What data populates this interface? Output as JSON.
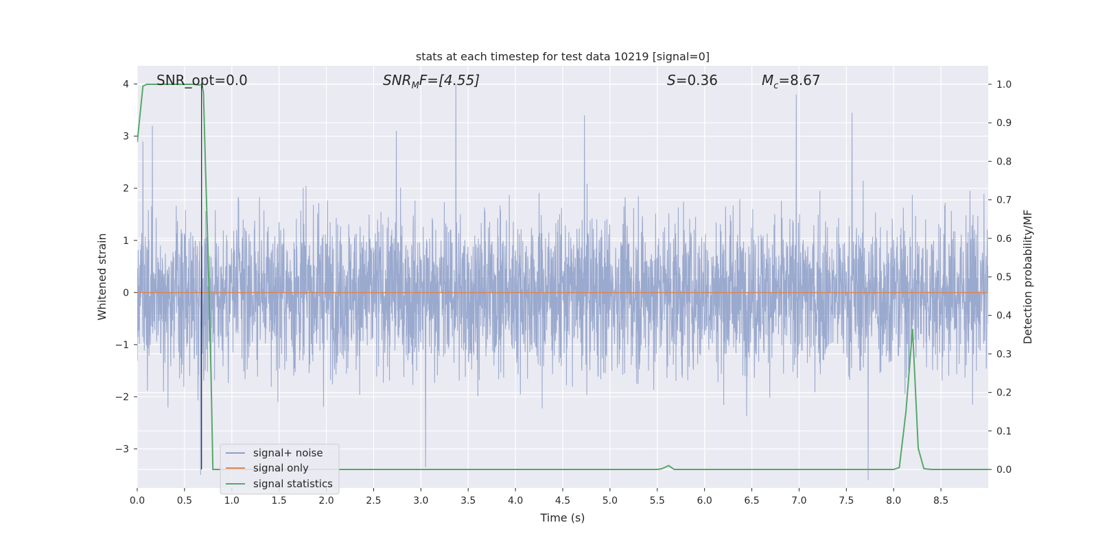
{
  "chart_data": {
    "type": "line",
    "title": "stats at each timestep for test data 10219 [signal=0]",
    "xlabel": "Time (s)",
    "ylabel_left": "Whitened strain",
    "ylabel_right": "Detection probability/MF",
    "xlim": [
      0.0,
      9.0
    ],
    "ylim_left": [
      -3.75,
      4.35
    ],
    "ylim_right": [
      -0.048,
      1.048
    ],
    "x_ticks": [
      "0.0",
      "0.5",
      "1.0",
      "1.5",
      "2.0",
      "2.5",
      "3.0",
      "3.5",
      "4.0",
      "4.5",
      "5.0",
      "5.5",
      "6.0",
      "6.5",
      "7.0",
      "7.5",
      "8.0",
      "8.5"
    ],
    "y_ticks_left": [
      "−3",
      "−2",
      "−1",
      "0",
      "1",
      "2",
      "3",
      "4"
    ],
    "y_ticks_right": [
      "0.0",
      "0.1",
      "0.2",
      "0.3",
      "0.4",
      "0.5",
      "0.6",
      "0.7",
      "0.8",
      "0.9",
      "1.0"
    ],
    "grid": true,
    "legend_position": "lower-left",
    "annotations": {
      "snr_opt": "SNR_opt=0.0",
      "snr_mf_symbol": "SNR",
      "snr_mf_sub": "M",
      "snr_mf_rest": "F=[4.55]",
      "s_symbol": "S",
      "s_rest": "=0.36",
      "mc_symbol": "M",
      "mc_sub": "c",
      "mc_rest": "=8.67"
    },
    "series": [
      {
        "name": "signal+ noise",
        "axis": "left",
        "color": "#8c9ec8",
        "style": "noise",
        "notable_peaks": [
          {
            "x": 0.06,
            "y": 2.9
          },
          {
            "x": 0.16,
            "y": 3.2
          },
          {
            "x": 2.74,
            "y": 3.1
          },
          {
            "x": 3.37,
            "y": 4.0
          },
          {
            "x": 4.73,
            "y": 3.4
          },
          {
            "x": 6.97,
            "y": 3.8
          },
          {
            "x": 7.56,
            "y": 3.45
          },
          {
            "x": 0.67,
            "y": -3.5
          },
          {
            "x": 3.05,
            "y": -3.35
          },
          {
            "x": 7.73,
            "y": -3.6
          }
        ]
      },
      {
        "name": "signal only",
        "axis": "left",
        "color": "#dd8452",
        "x": [
          0.0,
          9.0
        ],
        "y": [
          0.0,
          0.0
        ]
      },
      {
        "name": "signal statistics",
        "axis": "right",
        "color": "#55a868",
        "x": [
          0.0,
          0.06,
          0.1,
          0.15,
          0.3,
          0.5,
          0.6,
          0.66,
          0.68,
          0.7,
          0.72,
          0.75,
          0.78,
          0.8,
          0.85,
          1.0,
          2.0,
          3.0,
          4.0,
          5.0,
          5.5,
          5.55,
          5.62,
          5.68,
          5.75,
          6.0,
          7.0,
          7.6,
          7.75,
          8.0,
          8.06,
          8.13,
          8.2,
          8.26,
          8.32,
          8.4,
          8.6,
          9.0
        ],
        "y": [
          0.85,
          0.995,
          1.0,
          1.0,
          1.0,
          1.0,
          1.0,
          0.998,
          1.0,
          0.98,
          0.8,
          0.55,
          0.25,
          0.0,
          0.0,
          0.0,
          0.0,
          0.0,
          0.0,
          0.0,
          0.0,
          0.002,
          0.01,
          0.0,
          0.0,
          0.0,
          0.0,
          0.0,
          0.0,
          0.0,
          0.005,
          0.15,
          0.365,
          0.055,
          0.002,
          0.0,
          0.0,
          0.0
        ]
      }
    ],
    "vertical_marker": {
      "x": 0.68,
      "color": "#262626"
    }
  }
}
